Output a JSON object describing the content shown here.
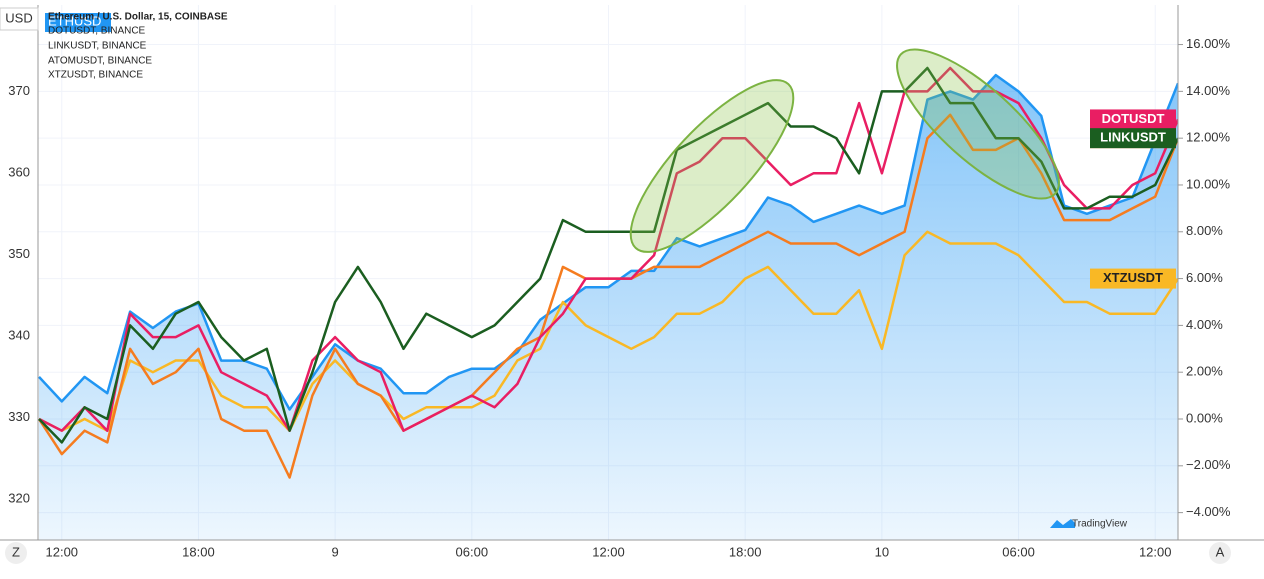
{
  "chart_data": {
    "type": "line",
    "title": "Ethereum / U.S. Dollar, 15, COINBASE",
    "legend": [
      "DOTUSDT, BINANCE",
      "LINKUSDT, BINANCE",
      "ATOMUSDT, BINANCE",
      "XTZUSDT, BINANCE"
    ],
    "currency_label": "USD",
    "buttons": [
      "Z",
      "A"
    ],
    "watermark": "TradingView",
    "categories": [
      null,
      "12:00",
      null,
      null,
      null,
      null,
      null,
      "18:00",
      null,
      null,
      null,
      null,
      null,
      "9",
      null,
      null,
      null,
      null,
      null,
      "06:00",
      null,
      null,
      null,
      null,
      null,
      "12:00",
      null,
      null,
      null,
      null,
      null,
      "18:00",
      null,
      null,
      null,
      null,
      null,
      "10",
      null,
      null,
      null,
      null,
      null,
      "06:00",
      null,
      null,
      null,
      null,
      null,
      "12:00",
      null
    ],
    "series": [
      {
        "name": "ETHUSD",
        "color": "#2196f3",
        "axis": "y",
        "area": true,
        "values": [
          335,
          332,
          335,
          333,
          343,
          341,
          343,
          344,
          337,
          337,
          336,
          331,
          335,
          339,
          337,
          336,
          333,
          333,
          335,
          336,
          336,
          338,
          342,
          344,
          346,
          346,
          348,
          348,
          352,
          351,
          352,
          353,
          357,
          356,
          354,
          355,
          356,
          355,
          356,
          369,
          370,
          369,
          372,
          370,
          367,
          356,
          355,
          356,
          357,
          364,
          371
        ]
      },
      {
        "name": "XTZUSDT",
        "color": "#f9b825",
        "axis": "y2",
        "values": [
          0,
          -0.5,
          0,
          -0.5,
          2.5,
          2,
          2.5,
          2.5,
          1,
          0.5,
          0.5,
          -0.5,
          1.5,
          2.5,
          1.5,
          1,
          0,
          0.5,
          0.5,
          0.5,
          1,
          2.5,
          3,
          5,
          4,
          3.5,
          3,
          3.5,
          4.5,
          4.5,
          5,
          6,
          6.5,
          5.5,
          4.5,
          4.5,
          5.5,
          3,
          7,
          8,
          7.5,
          7.5,
          7.5,
          7,
          6,
          5,
          5,
          4.5,
          4.5,
          4.5,
          6
        ]
      },
      {
        "name": "ATOMUSDT",
        "color": "#f57c1f",
        "axis": "y2",
        "values": [
          0,
          -1.5,
          -0.5,
          -1,
          3,
          1.5,
          2,
          3,
          0,
          -0.5,
          -0.5,
          -2.5,
          1,
          3,
          1.5,
          1,
          -0.5,
          0,
          0.5,
          1,
          2,
          3,
          3.5,
          6.5,
          6,
          6,
          6,
          6.5,
          6.5,
          6.5,
          7,
          7.5,
          8,
          7.5,
          7.5,
          7.5,
          7,
          7.5,
          8,
          12,
          13,
          11.5,
          11.5,
          12,
          10.5,
          8.5,
          8.5,
          8.5,
          9,
          9.5,
          12
        ]
      },
      {
        "name": "DOTUSDT",
        "color": "#e91e63",
        "axis": "y2",
        "values": [
          0,
          -0.5,
          0.5,
          -0.5,
          4.5,
          3.5,
          3.5,
          4,
          2,
          1.5,
          1,
          -0.5,
          2.5,
          3.5,
          2.5,
          2,
          -0.5,
          0,
          0.5,
          1,
          0.5,
          1.5,
          3.5,
          4.5,
          6,
          6,
          6,
          7,
          10.5,
          11,
          12,
          12,
          11,
          10,
          10.5,
          10.5,
          13.5,
          10.5,
          14,
          14,
          15,
          14,
          14,
          13.5,
          12,
          10,
          9,
          9,
          10,
          10.5,
          12.8
        ]
      },
      {
        "name": "LINKUSDT",
        "color": "#1b5e20",
        "axis": "y2",
        "values": [
          0,
          -1,
          0.5,
          0,
          4,
          3,
          4.5,
          5,
          3.5,
          2.5,
          3,
          -0.5,
          2,
          5,
          6.5,
          5,
          3,
          4.5,
          4,
          3.5,
          4,
          5,
          6,
          8.5,
          8,
          8,
          8,
          8,
          11.5,
          12,
          12.5,
          13,
          13.5,
          12.5,
          12.5,
          12,
          10.5,
          14,
          14,
          15,
          13.5,
          13.5,
          12,
          12,
          11,
          9,
          9,
          9.5,
          9.5,
          10,
          12
        ]
      }
    ],
    "ylim": [
      315,
      380.6
    ],
    "yticks": [
      320,
      330,
      340,
      350,
      360,
      370
    ],
    "y2lim": [
      -5.17,
      17.69
    ],
    "y2ticks": [
      {
        "value": -4,
        "label": "−4.00%"
      },
      {
        "value": -2,
        "label": "−2.00%"
      },
      {
        "value": 0,
        "label": "0.00%"
      },
      {
        "value": 2,
        "label": "2.00%"
      },
      {
        "value": 4,
        "label": "4.00%"
      },
      {
        "value": 6,
        "label": "6.00%"
      },
      {
        "value": 8,
        "label": "8.00%"
      },
      {
        "value": 10,
        "label": "10.00%"
      },
      {
        "value": 12,
        "label": "12.00%"
      },
      {
        "value": 14,
        "label": "14.00%"
      },
      {
        "value": 16,
        "label": "16.00%"
      }
    ],
    "grid": true
  }
}
